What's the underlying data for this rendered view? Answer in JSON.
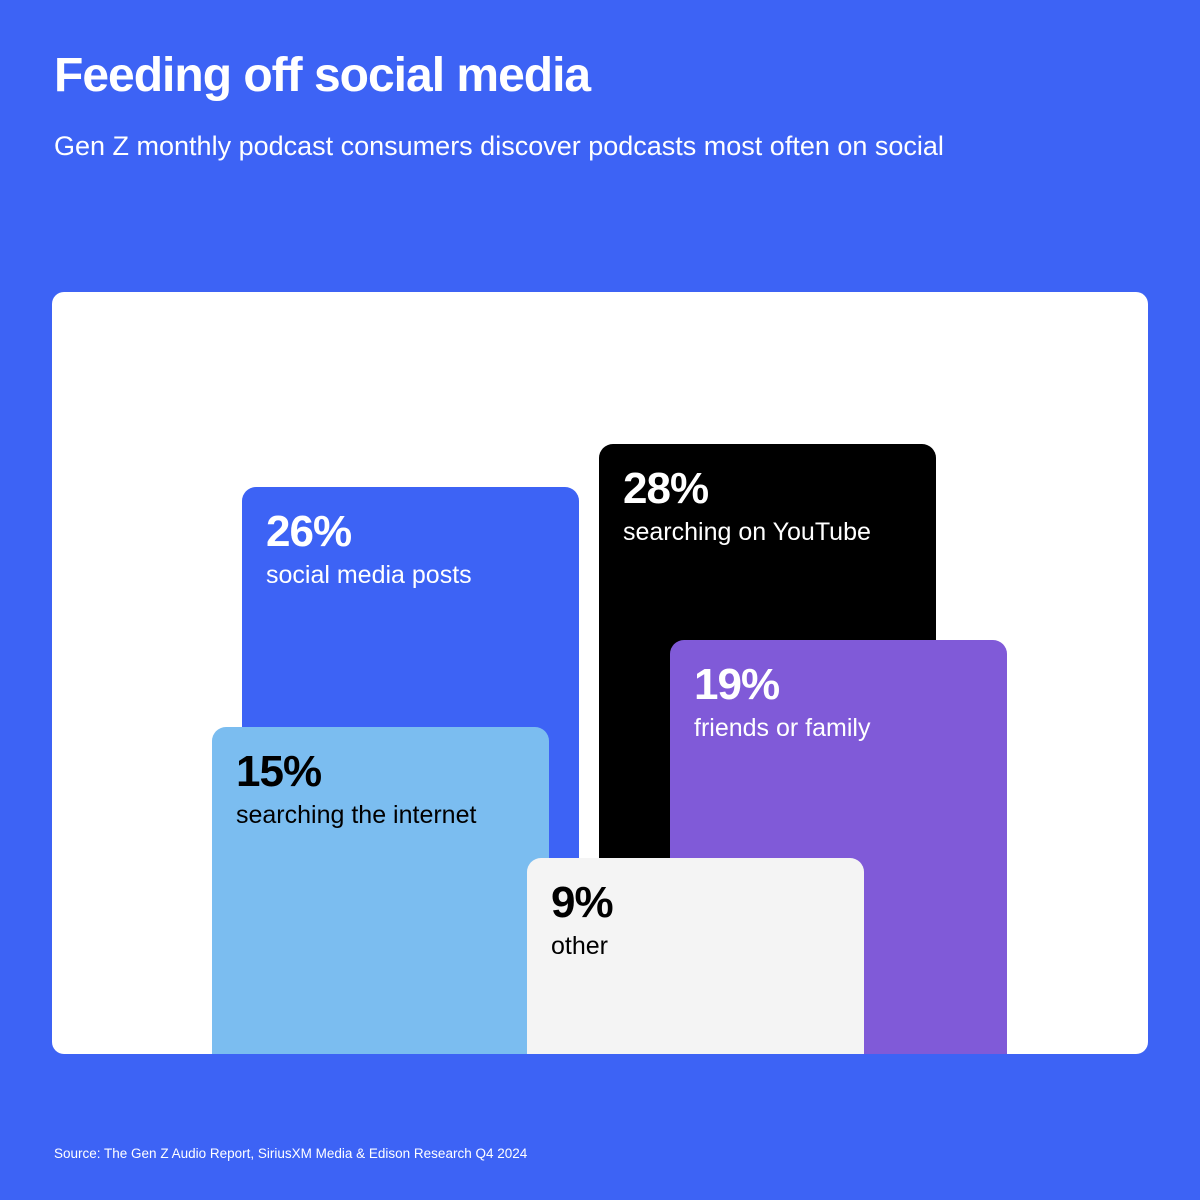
{
  "title": "Feeding off social media",
  "subtitle": "Gen Z monthly podcast consumers discover podcasts most often on social",
  "source": "Source: The Gen Z Audio Report, SiriusXM Media & Edison Research Q4 2024",
  "colors": {
    "background": "#3d63f5",
    "panel": "#ffffff"
  },
  "chart_data": {
    "type": "bar",
    "unit": "%",
    "items": [
      {
        "key": "social",
        "value": 26,
        "value_label": "26%",
        "label": "social media posts",
        "color": "#3d63f5",
        "text_color": "#ffffff"
      },
      {
        "key": "youtube",
        "value": 28,
        "value_label": "28%",
        "label": "searching on YouTube",
        "color": "#000000",
        "text_color": "#ffffff"
      },
      {
        "key": "internet",
        "value": 15,
        "value_label": "15%",
        "label": "searching the internet",
        "color": "#7bbdf0",
        "text_color": "#000000"
      },
      {
        "key": "friends",
        "value": 19,
        "value_label": "19%",
        "label": "friends or family",
        "color": "#805ad8",
        "text_color": "#ffffff"
      },
      {
        "key": "other",
        "value": 9,
        "value_label": "9%",
        "label": "other",
        "color": "#f4f4f4",
        "text_color": "#000000"
      }
    ]
  }
}
